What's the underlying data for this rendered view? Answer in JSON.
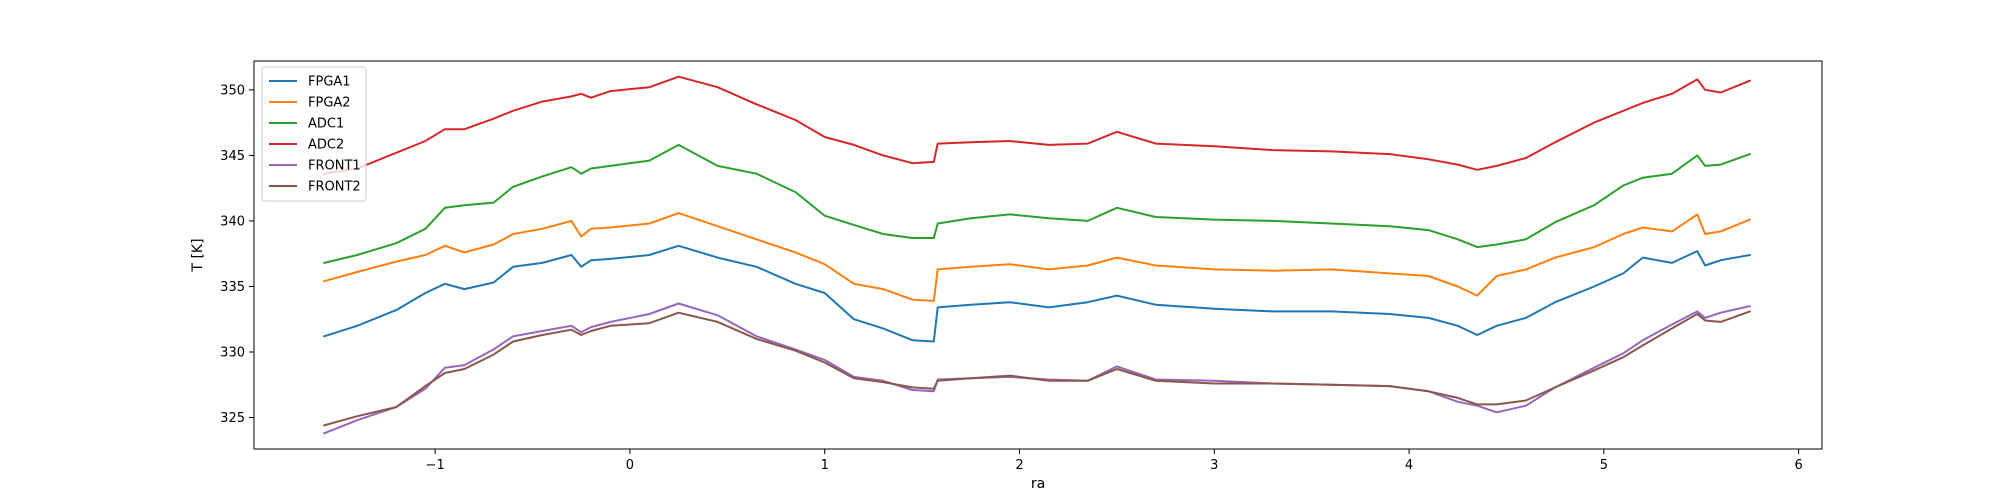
{
  "chart_data": {
    "type": "line",
    "xlabel": "ra",
    "ylabel": "T [K]",
    "xlim": [
      -1.93,
      6.12
    ],
    "ylim": [
      322.6,
      352.2
    ],
    "xticks": [
      -1,
      0,
      1,
      2,
      3,
      4,
      5,
      6
    ],
    "yticks": [
      325,
      330,
      335,
      340,
      345,
      350
    ],
    "legend": "top-left",
    "grid": false,
    "colors": {
      "FPGA1": "#1f77b4",
      "FPGA2": "#ff7f0e",
      "ADC1": "#2ca02c",
      "ADC2": "#d62728",
      "FRONT1": "#9467bd",
      "FRONT2": "#8c564b"
    },
    "series": [
      {
        "name": "FPGA1",
        "x": [
          -1.57,
          -1.4,
          -1.2,
          -1.05,
          -0.95,
          -0.85,
          -0.7,
          -0.6,
          -0.45,
          -0.3,
          -0.25,
          -0.2,
          -0.1,
          0.1,
          0.25,
          0.45,
          0.65,
          0.85,
          1.0,
          1.15,
          1.3,
          1.45,
          1.56,
          1.58,
          1.75,
          1.95,
          2.15,
          2.35,
          2.5,
          2.7,
          3.0,
          3.3,
          3.6,
          3.9,
          4.1,
          4.25,
          4.35,
          4.45,
          4.6,
          4.75,
          4.95,
          5.1,
          5.2,
          5.35,
          5.48,
          5.52,
          5.6,
          5.75
        ],
        "y": [
          331.2,
          332.0,
          333.2,
          334.5,
          335.2,
          334.8,
          335.3,
          336.5,
          336.8,
          337.4,
          336.5,
          337.0,
          337.1,
          337.4,
          338.1,
          337.2,
          336.5,
          335.2,
          334.5,
          332.5,
          331.8,
          330.9,
          330.8,
          333.4,
          333.6,
          333.8,
          333.4,
          333.8,
          334.3,
          333.6,
          333.3,
          333.1,
          333.1,
          332.9,
          332.6,
          332.0,
          331.3,
          332.0,
          332.6,
          333.8,
          335.0,
          336.0,
          337.2,
          336.8,
          337.7,
          336.6,
          337.0,
          337.4
        ]
      },
      {
        "name": "FPGA2",
        "x": [
          -1.57,
          -1.4,
          -1.2,
          -1.05,
          -0.95,
          -0.85,
          -0.7,
          -0.6,
          -0.45,
          -0.3,
          -0.25,
          -0.2,
          -0.1,
          0.1,
          0.25,
          0.45,
          0.65,
          0.85,
          1.0,
          1.15,
          1.3,
          1.45,
          1.56,
          1.58,
          1.75,
          1.95,
          2.15,
          2.35,
          2.5,
          2.7,
          3.0,
          3.3,
          3.6,
          3.9,
          4.1,
          4.25,
          4.35,
          4.45,
          4.6,
          4.75,
          4.95,
          5.1,
          5.2,
          5.35,
          5.48,
          5.52,
          5.6,
          5.75
        ],
        "y": [
          335.4,
          336.1,
          336.9,
          337.4,
          338.1,
          337.6,
          338.2,
          339.0,
          339.4,
          340.0,
          338.8,
          339.4,
          339.5,
          339.8,
          340.6,
          339.6,
          338.6,
          337.6,
          336.7,
          335.2,
          334.8,
          334.0,
          333.9,
          336.3,
          336.5,
          336.7,
          336.3,
          336.6,
          337.2,
          336.6,
          336.3,
          336.2,
          336.3,
          336.0,
          335.8,
          335.0,
          334.3,
          335.8,
          336.3,
          337.2,
          338.0,
          339.0,
          339.5,
          339.2,
          340.5,
          339.0,
          339.2,
          340.1
        ]
      },
      {
        "name": "ADC1",
        "x": [
          -1.57,
          -1.4,
          -1.2,
          -1.05,
          -0.95,
          -0.85,
          -0.7,
          -0.6,
          -0.45,
          -0.3,
          -0.25,
          -0.2,
          -0.1,
          0.1,
          0.25,
          0.45,
          0.65,
          0.85,
          1.0,
          1.15,
          1.3,
          1.45,
          1.56,
          1.58,
          1.75,
          1.95,
          2.15,
          2.35,
          2.5,
          2.7,
          3.0,
          3.3,
          3.6,
          3.9,
          4.1,
          4.25,
          4.35,
          4.45,
          4.6,
          4.75,
          4.95,
          5.1,
          5.2,
          5.35,
          5.48,
          5.52,
          5.6,
          5.75
        ],
        "y": [
          336.8,
          337.4,
          338.3,
          339.4,
          341.0,
          341.2,
          341.4,
          342.6,
          343.4,
          344.1,
          343.6,
          344.0,
          344.2,
          344.6,
          345.8,
          344.2,
          343.6,
          342.2,
          340.4,
          339.7,
          339.0,
          338.7,
          338.7,
          339.8,
          340.2,
          340.5,
          340.2,
          340.0,
          341.0,
          340.3,
          340.1,
          340.0,
          339.8,
          339.6,
          339.3,
          338.6,
          338.0,
          338.2,
          338.6,
          339.9,
          341.2,
          342.7,
          343.3,
          343.6,
          345.0,
          344.2,
          344.3,
          345.1
        ]
      },
      {
        "name": "ADC2",
        "x": [
          -1.57,
          -1.4,
          -1.2,
          -1.05,
          -0.95,
          -0.85,
          -0.7,
          -0.6,
          -0.45,
          -0.3,
          -0.25,
          -0.2,
          -0.1,
          0.1,
          0.25,
          0.45,
          0.65,
          0.85,
          1.0,
          1.15,
          1.3,
          1.45,
          1.56,
          1.58,
          1.75,
          1.95,
          2.15,
          2.35,
          2.5,
          2.7,
          3.0,
          3.3,
          3.6,
          3.9,
          4.1,
          4.25,
          4.35,
          4.45,
          4.6,
          4.75,
          4.95,
          5.1,
          5.2,
          5.35,
          5.48,
          5.52,
          5.6,
          5.75
        ],
        "y": [
          343.6,
          344.0,
          345.2,
          346.1,
          347.0,
          347.0,
          347.8,
          348.4,
          349.1,
          349.5,
          349.7,
          349.4,
          349.9,
          350.2,
          351.0,
          350.2,
          348.9,
          347.7,
          346.4,
          345.8,
          345.0,
          344.4,
          344.5,
          345.9,
          346.0,
          346.1,
          345.8,
          345.9,
          346.8,
          345.9,
          345.7,
          345.4,
          345.3,
          345.1,
          344.7,
          344.3,
          343.9,
          344.2,
          344.8,
          346.0,
          347.5,
          348.4,
          349.0,
          349.7,
          350.8,
          350.0,
          349.8,
          350.7
        ]
      },
      {
        "name": "FRONT1",
        "x": [
          -1.57,
          -1.4,
          -1.2,
          -1.05,
          -0.95,
          -0.85,
          -0.7,
          -0.6,
          -0.45,
          -0.3,
          -0.25,
          -0.2,
          -0.1,
          0.1,
          0.25,
          0.45,
          0.65,
          0.85,
          1.0,
          1.15,
          1.3,
          1.45,
          1.56,
          1.58,
          1.75,
          1.95,
          2.15,
          2.35,
          2.5,
          2.7,
          3.0,
          3.3,
          3.6,
          3.9,
          4.1,
          4.25,
          4.35,
          4.45,
          4.6,
          4.75,
          4.95,
          5.1,
          5.2,
          5.35,
          5.48,
          5.52,
          5.6,
          5.75
        ],
        "y": [
          323.8,
          324.8,
          325.8,
          327.2,
          328.8,
          329.0,
          330.2,
          331.2,
          331.6,
          332.0,
          331.5,
          331.9,
          332.3,
          332.9,
          333.7,
          332.8,
          331.2,
          330.2,
          329.4,
          328.1,
          327.8,
          327.1,
          327.0,
          327.9,
          328.0,
          328.1,
          327.9,
          327.8,
          328.9,
          327.9,
          327.8,
          327.6,
          327.5,
          327.4,
          327.0,
          326.2,
          325.9,
          325.4,
          325.9,
          327.3,
          328.8,
          329.9,
          330.9,
          332.1,
          333.1,
          332.6,
          333.0,
          333.5
        ]
      },
      {
        "name": "FRONT2",
        "x": [
          -1.57,
          -1.4,
          -1.2,
          -1.05,
          -0.95,
          -0.85,
          -0.7,
          -0.6,
          -0.45,
          -0.3,
          -0.25,
          -0.2,
          -0.1,
          0.1,
          0.25,
          0.45,
          0.65,
          0.85,
          1.0,
          1.15,
          1.3,
          1.45,
          1.56,
          1.58,
          1.75,
          1.95,
          2.15,
          2.35,
          2.5,
          2.7,
          3.0,
          3.3,
          3.6,
          3.9,
          4.1,
          4.25,
          4.35,
          4.45,
          4.6,
          4.75,
          4.95,
          5.1,
          5.2,
          5.35,
          5.48,
          5.52,
          5.6,
          5.75
        ],
        "y": [
          324.4,
          325.1,
          325.8,
          327.4,
          328.4,
          328.7,
          329.8,
          330.8,
          331.3,
          331.7,
          331.3,
          331.6,
          332.0,
          332.2,
          333.0,
          332.3,
          331.0,
          330.1,
          329.2,
          328.0,
          327.7,
          327.3,
          327.2,
          327.8,
          328.0,
          328.2,
          327.8,
          327.8,
          328.7,
          327.8,
          327.6,
          327.6,
          327.5,
          327.4,
          327.0,
          326.5,
          326.0,
          326.0,
          326.3,
          327.3,
          328.6,
          329.6,
          330.5,
          331.8,
          332.9,
          332.4,
          332.3,
          333.1
        ]
      }
    ]
  }
}
